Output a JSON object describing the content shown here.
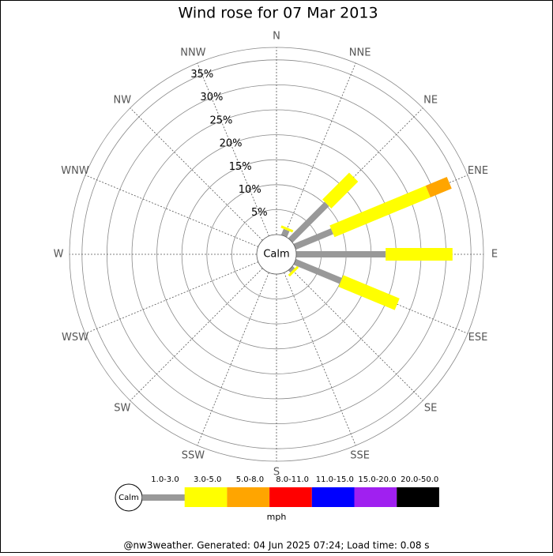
{
  "chart_data": {
    "type": "windrose",
    "title": "Wind rose for 07 Mar 2013",
    "directions": [
      "N",
      "NNE",
      "NE",
      "ENE",
      "E",
      "ESE",
      "SE",
      "SSE",
      "S",
      "SSW",
      "SW",
      "WSW",
      "W",
      "WNW",
      "NW",
      "NNW"
    ],
    "calm_label": "Calm",
    "rlim": [
      0,
      37.5
    ],
    "rticks": [
      {
        "value": 5,
        "label": "5%"
      },
      {
        "value": 10,
        "label": "10%"
      },
      {
        "value": 15,
        "label": "15%"
      },
      {
        "value": 20,
        "label": "20%"
      },
      {
        "value": 25,
        "label": "25%"
      },
      {
        "value": 30,
        "label": "30%"
      },
      {
        "value": 35,
        "label": "35%"
      }
    ],
    "series": [
      {
        "name": "1.0-3.0",
        "color": "#999999",
        "values": [
          0,
          1.3,
          10.3,
          8.1,
          17.9,
          10.0,
          0.6,
          0,
          0,
          0,
          0,
          0,
          0,
          0,
          0,
          0
        ]
      },
      {
        "name": "3.0-5.0",
        "color": "#ffff00",
        "values": [
          0,
          0.5,
          7.6,
          20.8,
          13.4,
          12.2,
          0.5,
          0,
          0,
          0,
          0,
          0,
          0,
          0,
          0,
          0
        ]
      },
      {
        "name": "5.0-8.0",
        "color": "#ffa500",
        "values": [
          0,
          0,
          0,
          4.6,
          0,
          0,
          0,
          0,
          0,
          0,
          0,
          0,
          0,
          0,
          0,
          0
        ]
      },
      {
        "name": "8.0-11.0",
        "color": "#ff0000",
        "values": [
          0,
          0,
          0,
          0,
          0,
          0,
          0,
          0,
          0,
          0,
          0,
          0,
          0,
          0,
          0,
          0
        ]
      },
      {
        "name": "11.0-15.0",
        "color": "#0000ff",
        "values": [
          0,
          0,
          0,
          0,
          0,
          0,
          0,
          0,
          0,
          0,
          0,
          0,
          0,
          0,
          0,
          0
        ]
      },
      {
        "name": "15.0-20.0",
        "color": "#a020f0",
        "values": [
          0,
          0,
          0,
          0,
          0,
          0,
          0,
          0,
          0,
          0,
          0,
          0,
          0,
          0,
          0,
          0
        ]
      },
      {
        "name": "20.0-50.0",
        "color": "#000000",
        "values": [
          0,
          0,
          0,
          0,
          0,
          0,
          0,
          0,
          0,
          0,
          0,
          0,
          0,
          0,
          0,
          0
        ]
      }
    ],
    "unit": "mph",
    "footer": "@nw3weather. Generated: 04 Jun 2025 07:24; Load time: 0.08 s"
  }
}
